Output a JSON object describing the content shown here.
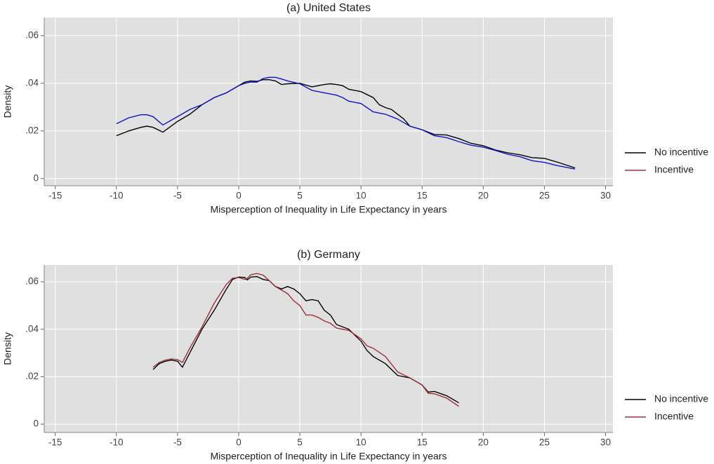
{
  "chart_data": [
    {
      "type": "line",
      "title": "(a) United States",
      "xlabel": "Misperception of Inequality in Life Expectancy in years",
      "ylabel": "Density",
      "xlim": [
        -15.9,
        30.6
      ],
      "ylim": [
        -0.003,
        0.0676
      ],
      "xticks": [
        -15,
        -10,
        -5,
        0,
        5,
        10,
        15,
        20,
        25,
        30
      ],
      "yticks": [
        0,
        {
          "value": 0.02,
          "label": ".02"
        },
        {
          "value": 0.04,
          "label": ".04"
        },
        {
          "value": 0.06,
          "label": ".06"
        }
      ],
      "grid": true,
      "legend": "right",
      "series": [
        {
          "name": "No incentive",
          "color": "#000000",
          "x": [
            -10,
            -9,
            -8,
            -7.5,
            -7,
            -6.2,
            -5,
            -4,
            -3,
            -2,
            -1,
            0,
            0.5,
            1,
            1.5,
            2,
            2.5,
            3,
            3.5,
            4,
            5,
            6,
            6.5,
            7,
            7.5,
            8,
            8.5,
            9,
            10,
            11,
            11.5,
            12,
            12.5,
            13,
            13.5,
            14,
            15,
            16,
            17,
            18,
            19,
            20,
            21,
            22,
            23,
            24,
            25,
            26,
            27.5
          ],
          "values": [
            0.018,
            0.02,
            0.0215,
            0.022,
            0.0215,
            0.0195,
            0.024,
            0.027,
            0.031,
            0.034,
            0.036,
            0.039,
            0.0405,
            0.041,
            0.0408,
            0.0415,
            0.0415,
            0.041,
            0.0395,
            0.0398,
            0.04,
            0.0385,
            0.039,
            0.0395,
            0.0398,
            0.0395,
            0.039,
            0.0375,
            0.0365,
            0.034,
            0.031,
            0.0298,
            0.029,
            0.027,
            0.025,
            0.022,
            0.0205,
            0.0185,
            0.0183,
            0.0168,
            0.0148,
            0.0138,
            0.012,
            0.0108,
            0.01,
            0.0088,
            0.0085,
            0.007,
            0.0045
          ]
        },
        {
          "name": "Incentive",
          "color": "#1010cc",
          "legend_color": "#a0303c",
          "x": [
            -10,
            -9,
            -8,
            -7.5,
            -7,
            -6.2,
            -5,
            -4,
            -3,
            -2,
            -1,
            0,
            0.5,
            1,
            1.5,
            2,
            2.5,
            3,
            3.5,
            4,
            5,
            6,
            6.5,
            7,
            7.5,
            8,
            8.5,
            9,
            10,
            11,
            11.5,
            12,
            12.5,
            13,
            13.5,
            14,
            15,
            16,
            17,
            18,
            19,
            20,
            21,
            22,
            23,
            24,
            25,
            26,
            27.5
          ],
          "values": [
            0.023,
            0.0255,
            0.0268,
            0.0268,
            0.026,
            0.0225,
            0.026,
            0.029,
            0.031,
            0.034,
            0.036,
            0.039,
            0.04,
            0.0405,
            0.0405,
            0.042,
            0.0425,
            0.0425,
            0.0418,
            0.041,
            0.0398,
            0.037,
            0.0365,
            0.036,
            0.0355,
            0.035,
            0.034,
            0.0325,
            0.0315,
            0.028,
            0.0275,
            0.027,
            0.026,
            0.025,
            0.0235,
            0.022,
            0.0205,
            0.018,
            0.0172,
            0.0155,
            0.014,
            0.0132,
            0.0118,
            0.0102,
            0.0092,
            0.0075,
            0.0068,
            0.0055,
            0.004
          ]
        }
      ]
    },
    {
      "type": "line",
      "title": "(b) Germany",
      "xlabel": "Misperception of Inequality in Life Expectancy in years",
      "ylabel": "Density",
      "xlim": [
        -15.9,
        30.6
      ],
      "ylim": [
        -0.0035,
        0.0671
      ],
      "xticks": [
        -15,
        -10,
        -5,
        0,
        5,
        10,
        15,
        20,
        25,
        30
      ],
      "yticks": [
        0,
        {
          "value": 0.02,
          "label": ".02"
        },
        {
          "value": 0.04,
          "label": ".04"
        },
        {
          "value": 0.06,
          "label": ".06"
        }
      ],
      "grid": true,
      "legend": "right",
      "series": [
        {
          "name": "No incentive",
          "color": "#000000",
          "x": [
            -7,
            -6.5,
            -6,
            -5.5,
            -5,
            -4.6,
            -4,
            -3,
            -2,
            -1,
            -0.5,
            0,
            0.5,
            0.7,
            1,
            1.5,
            2,
            2.5,
            3,
            3.5,
            4,
            4.5,
            5,
            5.5,
            6,
            6.5,
            7,
            7.5,
            8,
            9,
            10,
            10.5,
            11,
            12,
            13,
            14,
            15,
            15.5,
            16,
            17,
            18
          ],
          "values": [
            0.023,
            0.0255,
            0.0265,
            0.027,
            0.0265,
            0.024,
            0.03,
            0.04,
            0.048,
            0.057,
            0.061,
            0.062,
            0.0618,
            0.0608,
            0.062,
            0.0622,
            0.061,
            0.0605,
            0.058,
            0.057,
            0.058,
            0.057,
            0.055,
            0.052,
            0.0525,
            0.052,
            0.048,
            0.046,
            0.042,
            0.04,
            0.035,
            0.031,
            0.0285,
            0.0255,
            0.0205,
            0.0195,
            0.0165,
            0.0135,
            0.0138,
            0.012,
            0.009
          ]
        },
        {
          "name": "Incentive",
          "color": "#a0303c",
          "x": [
            -7,
            -6.5,
            -6,
            -5.5,
            -5,
            -4.6,
            -4,
            -3,
            -2,
            -1,
            -0.5,
            0,
            0.5,
            0.7,
            1,
            1.5,
            2,
            2.5,
            3,
            3.5,
            4,
            4.5,
            5,
            5.5,
            6,
            6.5,
            7,
            7.5,
            8,
            9,
            10,
            10.5,
            11,
            12,
            13,
            14,
            15,
            15.5,
            16,
            17,
            18
          ],
          "values": [
            0.024,
            0.026,
            0.027,
            0.0275,
            0.0272,
            0.026,
            0.032,
            0.041,
            0.051,
            0.059,
            0.0615,
            0.0618,
            0.061,
            0.0615,
            0.063,
            0.0635,
            0.0628,
            0.0605,
            0.058,
            0.0565,
            0.055,
            0.052,
            0.05,
            0.046,
            0.046,
            0.045,
            0.0435,
            0.0425,
            0.0405,
            0.0395,
            0.036,
            0.033,
            0.032,
            0.0285,
            0.022,
            0.0195,
            0.0165,
            0.013,
            0.0128,
            0.011,
            0.0075
          ]
        }
      ]
    }
  ]
}
